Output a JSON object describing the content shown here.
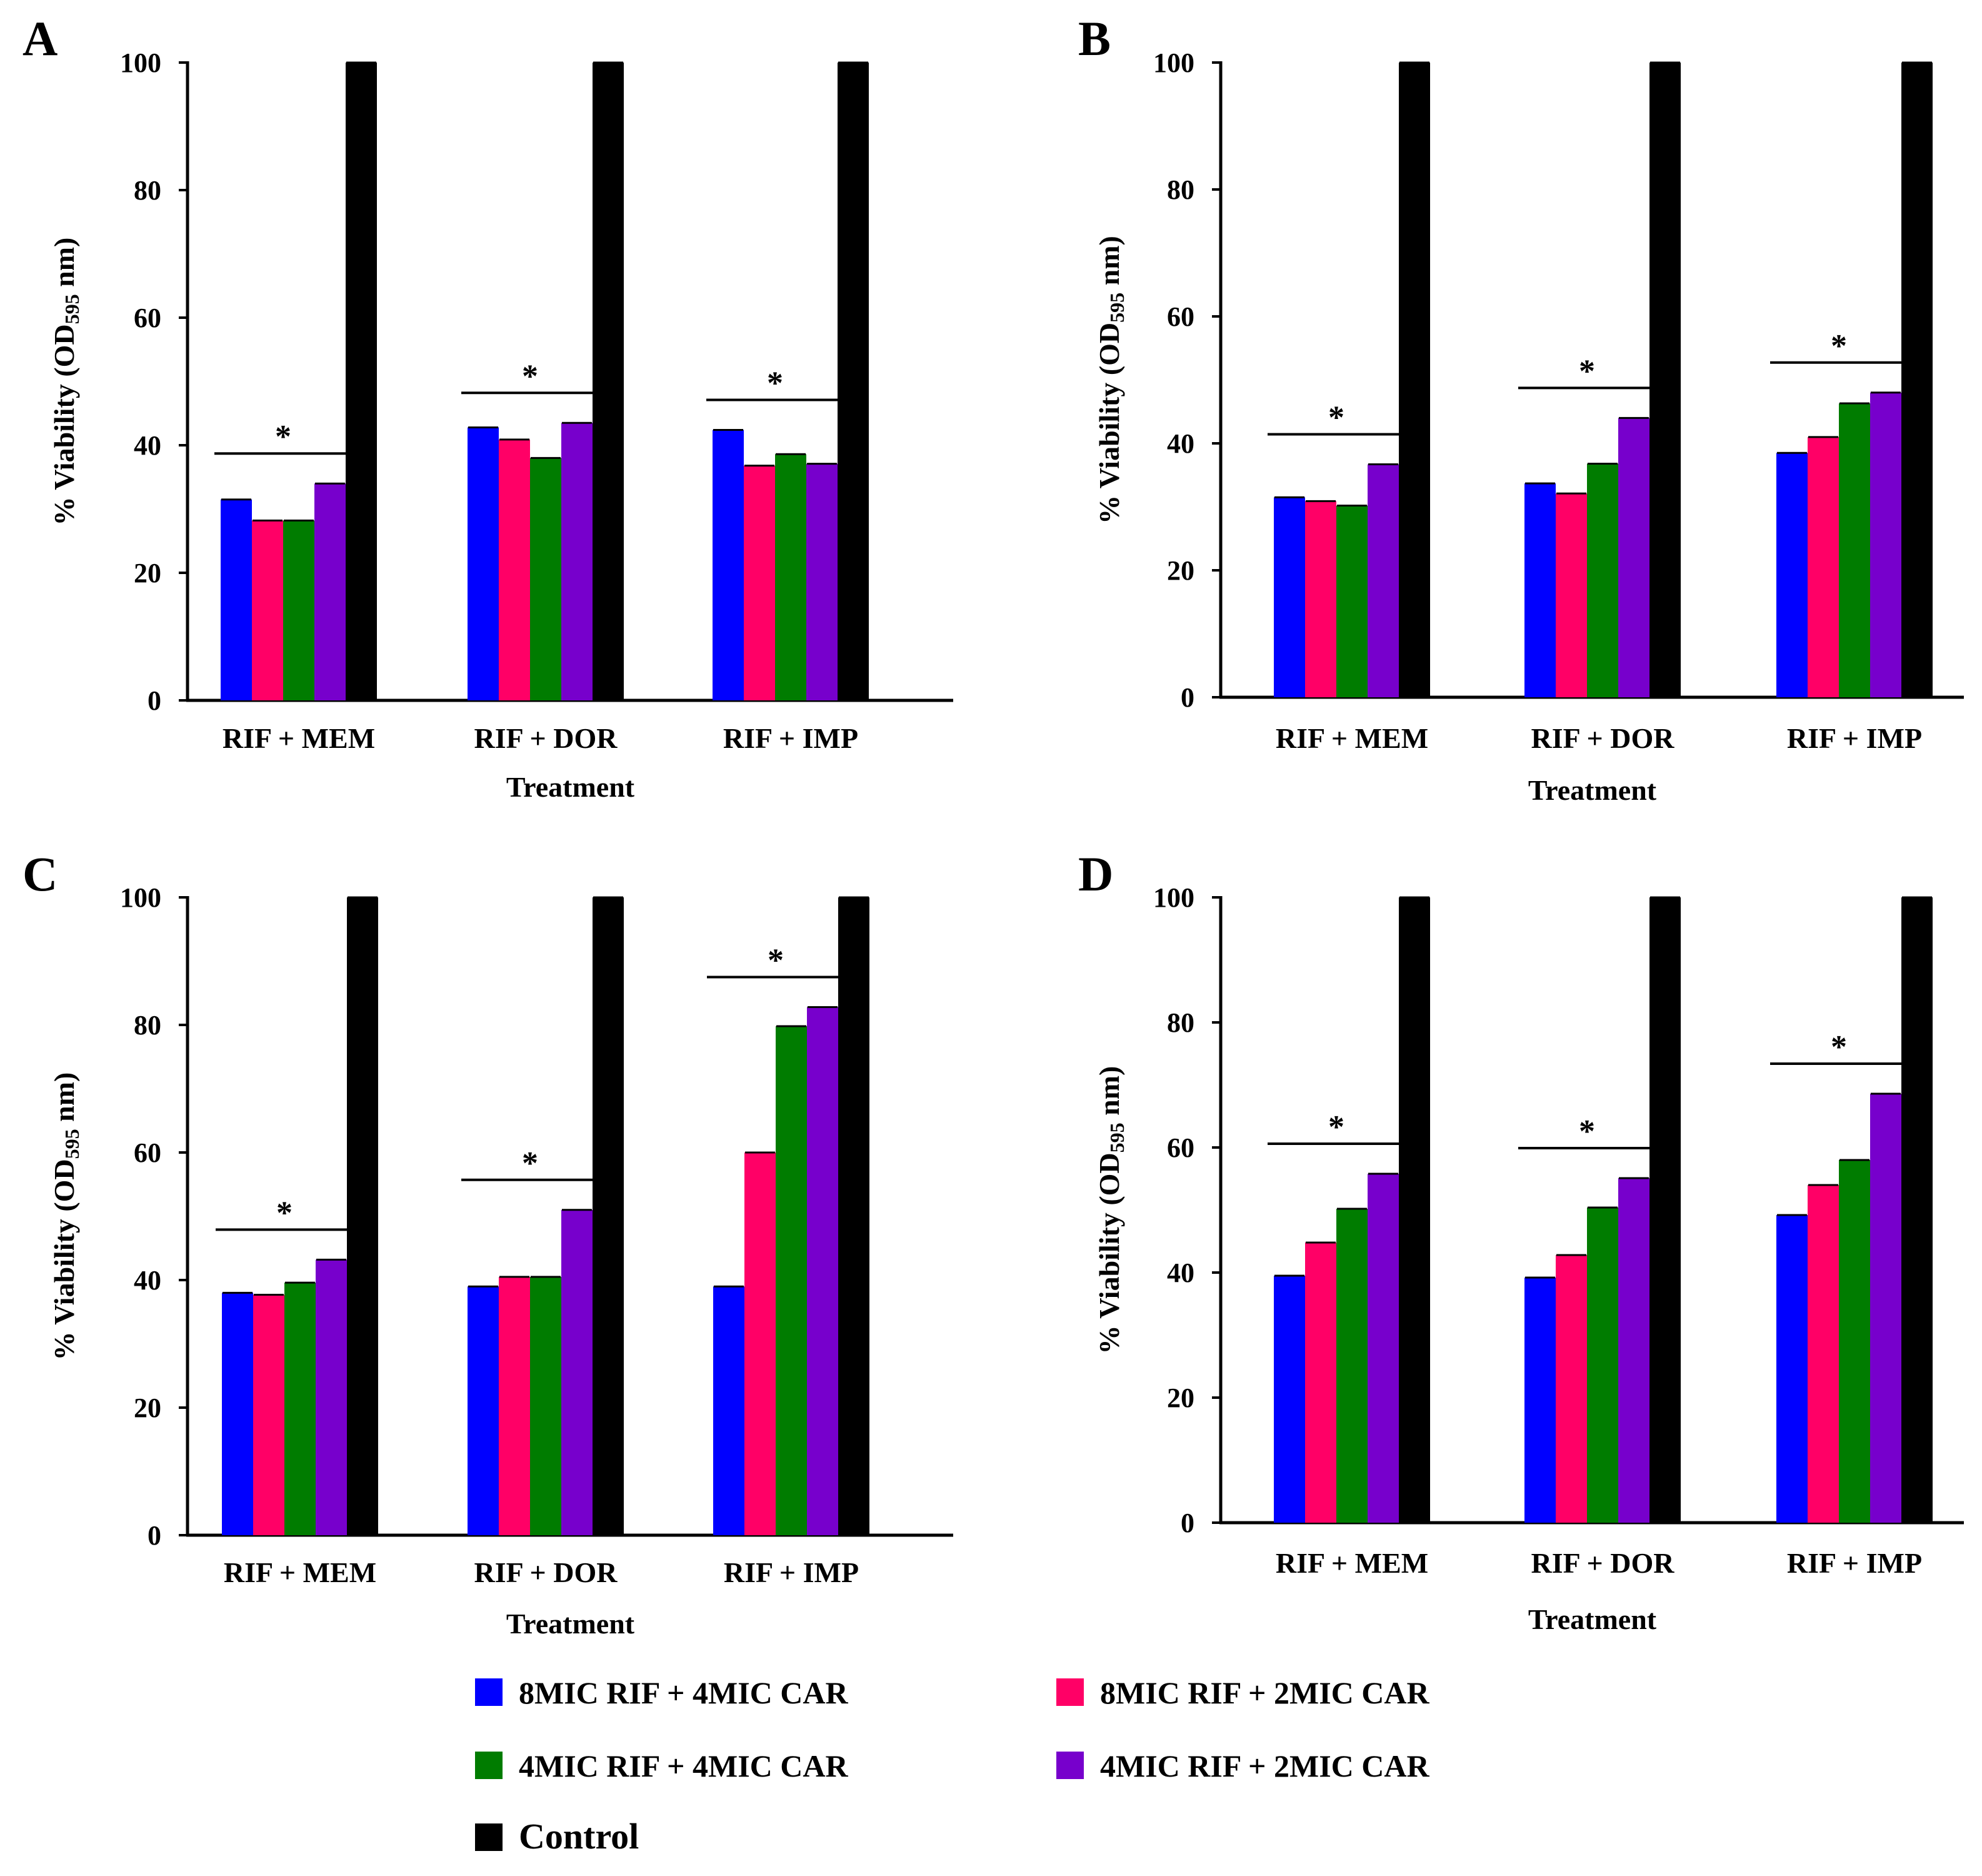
{
  "legend": {
    "entries": [
      {
        "name": "8MIC RIF + 4MIC CAR",
        "color": "#0000ff"
      },
      {
        "name": "8MIC RIF + 2MIC CAR",
        "color": "#ff0066"
      },
      {
        "name": "4MIC RIF + 4MIC CAR",
        "color": "#007c00"
      },
      {
        "name": "4MIC RIF + 2MIC CAR",
        "color": "#7700cc"
      },
      {
        "name": "Control",
        "color": "#000000"
      }
    ]
  },
  "chart_data": [
    {
      "panel": "A",
      "type": "bar",
      "categories": [
        "RIF + MEM",
        "RIF + DOR",
        "RIF + IMP"
      ],
      "series": [
        {
          "name": "8MIC RIF + 4MIC CAR",
          "values": [
            31.5,
            42.8,
            42.4
          ]
        },
        {
          "name": "8MIC RIF + 2MIC CAR",
          "values": [
            28.2,
            40.9,
            36.8
          ]
        },
        {
          "name": "4MIC RIF + 4MIC CAR",
          "values": [
            28.2,
            38.0,
            38.6
          ]
        },
        {
          "name": "4MIC RIF + 2MIC CAR",
          "values": [
            34.0,
            43.5,
            37.1
          ]
        },
        {
          "name": "Control",
          "values": [
            100,
            100,
            100
          ]
        }
      ],
      "significance": [
        "*",
        "*",
        "*"
      ],
      "xlabel": "Treatment",
      "ylabel": "% Viability (OD595 nm)",
      "ylim": [
        0,
        100
      ],
      "yticks": [
        "0",
        "20",
        "40",
        "60",
        "80",
        "100"
      ],
      "grid": false
    },
    {
      "panel": "B",
      "type": "bar",
      "categories": [
        "RIF + MEM",
        "RIF + DOR",
        "RIF + IMP"
      ],
      "series": [
        {
          "name": "8MIC RIF + 4MIC CAR",
          "values": [
            31.5,
            33.7,
            38.5
          ]
        },
        {
          "name": "8MIC RIF + 2MIC CAR",
          "values": [
            30.9,
            32.1,
            41.0
          ]
        },
        {
          "name": "4MIC RIF + 4MIC CAR",
          "values": [
            30.2,
            36.8,
            46.3
          ]
        },
        {
          "name": "4MIC RIF + 2MIC CAR",
          "values": [
            36.7,
            44.0,
            48.0
          ]
        },
        {
          "name": "Control",
          "values": [
            100,
            100,
            100
          ]
        }
      ],
      "significance": [
        "*",
        "*",
        "*"
      ],
      "xlabel": "Treatment",
      "ylabel": "% Viability (OD595 nm)",
      "ylim": [
        0,
        100
      ],
      "yticks": [
        "0",
        "20",
        "40",
        "60",
        "80",
        "100"
      ],
      "grid": false
    },
    {
      "panel": "C",
      "type": "bar",
      "categories": [
        "RIF + MEM",
        "RIF + DOR",
        "RIF + IMP"
      ],
      "series": [
        {
          "name": "8MIC RIF + 4MIC CAR",
          "values": [
            38.0,
            39.0,
            39.0
          ]
        },
        {
          "name": "8MIC RIF + 2MIC CAR",
          "values": [
            37.7,
            40.5,
            60.0
          ]
        },
        {
          "name": "4MIC RIF + 4MIC CAR",
          "values": [
            39.6,
            40.5,
            79.8
          ]
        },
        {
          "name": "4MIC RIF + 2MIC CAR",
          "values": [
            43.2,
            51.0,
            82.8
          ]
        },
        {
          "name": "Control",
          "values": [
            100,
            100,
            100
          ]
        }
      ],
      "significance": [
        "*",
        "*",
        "*"
      ],
      "xlabel": "Treatment",
      "ylabel": "% Viability (OD595 nm)",
      "ylim": [
        0,
        100
      ],
      "yticks": [
        "0",
        "20",
        "40",
        "60",
        "80",
        "100"
      ],
      "grid": false
    },
    {
      "panel": "D",
      "type": "bar",
      "categories": [
        "RIF + MEM",
        "RIF + DOR",
        "RIF + IMP"
      ],
      "series": [
        {
          "name": "8MIC RIF + 4MIC CAR",
          "values": [
            39.5,
            39.2,
            49.2
          ]
        },
        {
          "name": "8MIC RIF + 2MIC CAR",
          "values": [
            44.8,
            42.8,
            54.0
          ]
        },
        {
          "name": "4MIC RIF + 4MIC CAR",
          "values": [
            50.2,
            50.4,
            58.0
          ]
        },
        {
          "name": "4MIC RIF + 2MIC CAR",
          "values": [
            55.8,
            55.1,
            68.6
          ]
        },
        {
          "name": "Control",
          "values": [
            100,
            100,
            100
          ]
        }
      ],
      "significance": [
        "*",
        "*",
        "*"
      ],
      "xlabel": "Treatment",
      "ylabel": "% Viability (OD595 nm)",
      "ylim": [
        0,
        100
      ],
      "yticks": [
        "0",
        "20",
        "40",
        "60",
        "80",
        "100"
      ],
      "grid": false
    }
  ]
}
